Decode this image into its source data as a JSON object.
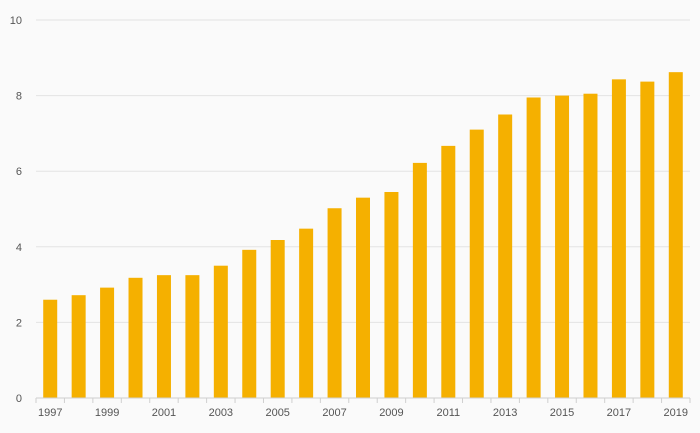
{
  "chart_data": {
    "type": "bar",
    "title": "",
    "xlabel": "",
    "ylabel": "",
    "ylim": [
      0,
      10
    ],
    "yticks": [
      0,
      2,
      4,
      6,
      8,
      10
    ],
    "grid": true,
    "bar_color": "#f5b000",
    "categories": [
      "1997",
      "1998",
      "1999",
      "2000",
      "2001",
      "2002",
      "2003",
      "2004",
      "2005",
      "2006",
      "2007",
      "2008",
      "2009",
      "2010",
      "2011",
      "2012",
      "2013",
      "2014",
      "2015",
      "2016",
      "2017",
      "2018",
      "2019"
    ],
    "x_tick_labels": [
      "1997",
      "1999",
      "2001",
      "2003",
      "2005",
      "2007",
      "2009",
      "2011",
      "2013",
      "2015",
      "2017",
      "2019"
    ],
    "values": [
      2.6,
      2.72,
      2.92,
      3.18,
      3.25,
      3.25,
      3.5,
      3.92,
      4.18,
      4.48,
      5.02,
      5.3,
      5.45,
      6.22,
      6.67,
      7.1,
      7.5,
      7.95,
      8.0,
      8.05,
      8.43,
      8.37,
      8.62
    ]
  }
}
